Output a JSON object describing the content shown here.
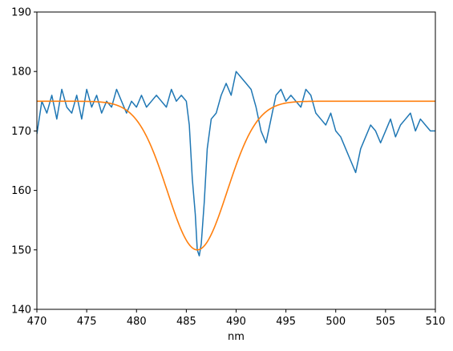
{
  "chart_data": {
    "type": "line",
    "xlabel": "nm",
    "ylabel": "",
    "title": "",
    "xlim": [
      470,
      510
    ],
    "ylim": [
      140,
      190
    ],
    "xticks": [
      470,
      475,
      480,
      485,
      490,
      495,
      500,
      505,
      510
    ],
    "yticks": [
      140,
      150,
      160,
      170,
      180,
      190
    ],
    "xtick_labels": [
      "470",
      "475",
      "480",
      "485",
      "490",
      "495",
      "500",
      "505",
      "510"
    ],
    "ytick_labels": [
      "140",
      "150",
      "160",
      "170",
      "180",
      "190"
    ],
    "grid": false,
    "legend": "none",
    "series": [
      {
        "kind": "measured",
        "color": "#1f77b4",
        "x": [
          470,
          470.5,
          471,
          471.5,
          472,
          472.5,
          473,
          473.5,
          474,
          474.5,
          475,
          475.5,
          476,
          476.5,
          477,
          477.5,
          478,
          478.5,
          479,
          479.5,
          480,
          480.5,
          481,
          481.5,
          482,
          482.5,
          483,
          483.5,
          484,
          484.5,
          485,
          485.3,
          485.6,
          485.9,
          486.1,
          486.3,
          486.5,
          486.8,
          487.1,
          487.5,
          488,
          488.5,
          489,
          489.5,
          490,
          490.5,
          491,
          491.5,
          492,
          492.5,
          493,
          493.5,
          494,
          494.5,
          495,
          495.5,
          496,
          496.5,
          497,
          497.5,
          498,
          498.5,
          499,
          499.5,
          500,
          500.5,
          501,
          501.5,
          502,
          502.5,
          503,
          503.5,
          504,
          504.5,
          505,
          505.5,
          506,
          506.5,
          507,
          507.5,
          508,
          508.5,
          509,
          509.5,
          510
        ],
        "y": [
          169.5,
          175,
          173,
          176,
          172,
          177,
          174,
          173,
          176,
          172,
          177,
          174,
          176,
          173,
          175,
          174,
          177,
          175,
          173,
          175,
          174,
          176,
          174,
          175,
          176,
          175,
          174,
          177,
          175,
          176,
          175,
          171,
          162,
          156,
          150,
          149,
          151,
          158,
          167,
          172,
          173,
          176,
          178,
          176,
          180,
          179,
          178,
          177,
          174,
          170,
          168,
          172,
          176,
          177,
          175,
          176,
          175,
          174,
          177,
          176,
          173,
          172,
          171,
          173,
          170,
          169,
          167,
          165,
          163,
          167,
          169,
          171,
          170,
          168,
          170,
          172,
          169,
          171,
          172,
          173,
          170,
          172,
          171,
          170,
          170
        ]
      },
      {
        "kind": "fit",
        "color": "#ff7f0e",
        "baseline": 175,
        "depth": 25,
        "center": 486.1,
        "sigma": 3.0
      }
    ]
  }
}
